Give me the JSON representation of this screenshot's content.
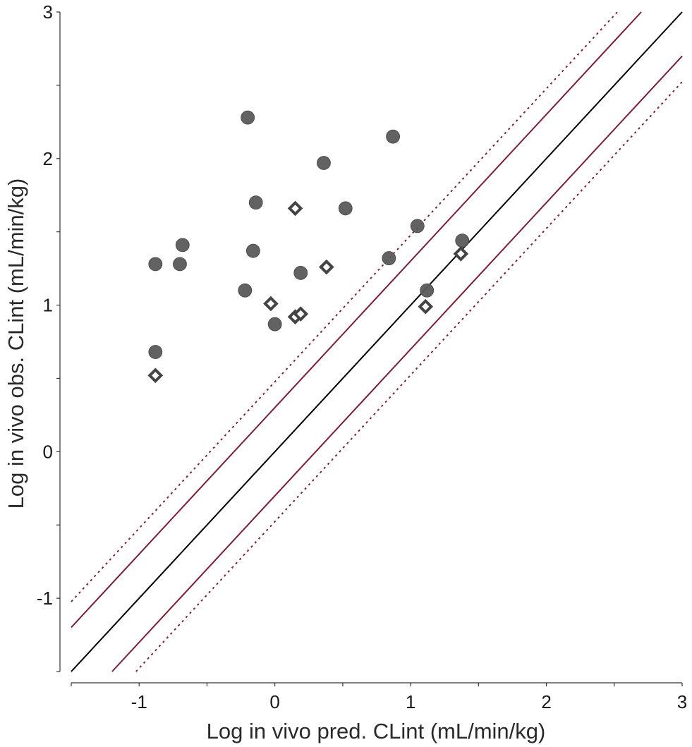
{
  "chart_data": {
    "type": "scatter",
    "title": "",
    "xlabel": "Log in vivo pred. CLint (mL/min/kg)",
    "ylabel": "Log in vivo obs. CLint (mL/min/kg)",
    "xlim": [
      -1.5,
      3
    ],
    "ylim": [
      -1.5,
      3
    ],
    "x_ticks": [
      -1,
      0,
      1,
      2,
      3
    ],
    "x_tick_labels": [
      "-1",
      "0",
      "1",
      "2",
      "3"
    ],
    "y_ticks": [
      -1,
      0,
      1,
      2,
      3
    ],
    "y_tick_labels": [
      "-1",
      "0",
      "1",
      "2",
      "3"
    ],
    "grid": false,
    "legend": "none",
    "series": [
      {
        "marker": "filled-circle",
        "color": "#5a5a5a",
        "points": [
          {
            "x": -0.88,
            "y": 1.28
          },
          {
            "x": -0.88,
            "y": 0.68
          },
          {
            "x": -0.7,
            "y": 1.28
          },
          {
            "x": -0.68,
            "y": 1.41
          },
          {
            "x": -0.2,
            "y": 2.28
          },
          {
            "x": -0.22,
            "y": 1.1
          },
          {
            "x": -0.16,
            "y": 1.37
          },
          {
            "x": -0.14,
            "y": 1.7
          },
          {
            "x": 0.0,
            "y": 0.87
          },
          {
            "x": 0.19,
            "y": 1.22
          },
          {
            "x": 0.36,
            "y": 1.97
          },
          {
            "x": 0.52,
            "y": 1.66
          },
          {
            "x": 0.84,
            "y": 1.32
          },
          {
            "x": 0.87,
            "y": 2.15
          },
          {
            "x": 1.05,
            "y": 1.54
          },
          {
            "x": 1.12,
            "y": 1.1
          },
          {
            "x": 1.38,
            "y": 1.44
          }
        ]
      },
      {
        "marker": "open-diamond",
        "color": "#444444",
        "points": [
          {
            "x": -0.88,
            "y": 0.52
          },
          {
            "x": -0.03,
            "y": 1.01
          },
          {
            "x": 0.15,
            "y": 0.92
          },
          {
            "x": 0.19,
            "y": 0.94
          },
          {
            "x": 0.15,
            "y": 1.66
          },
          {
            "x": 0.38,
            "y": 1.26
          },
          {
            "x": 1.11,
            "y": 0.99
          },
          {
            "x": 1.37,
            "y": 1.35
          }
        ]
      }
    ],
    "reference_lines": [
      {
        "kind": "identity",
        "offset": 0,
        "style": "solid",
        "color": "#000000"
      },
      {
        "kind": "two-fold",
        "offset": 0.301,
        "style": "solid",
        "color": "#7a1f35"
      },
      {
        "kind": "two-fold",
        "offset": -0.301,
        "style": "solid",
        "color": "#7a1f35"
      },
      {
        "kind": "three-fold",
        "offset": 0.477,
        "style": "dotted",
        "color": "#7a1f35"
      },
      {
        "kind": "three-fold",
        "offset": -0.477,
        "style": "dotted",
        "color": "#7a1f35"
      }
    ]
  }
}
